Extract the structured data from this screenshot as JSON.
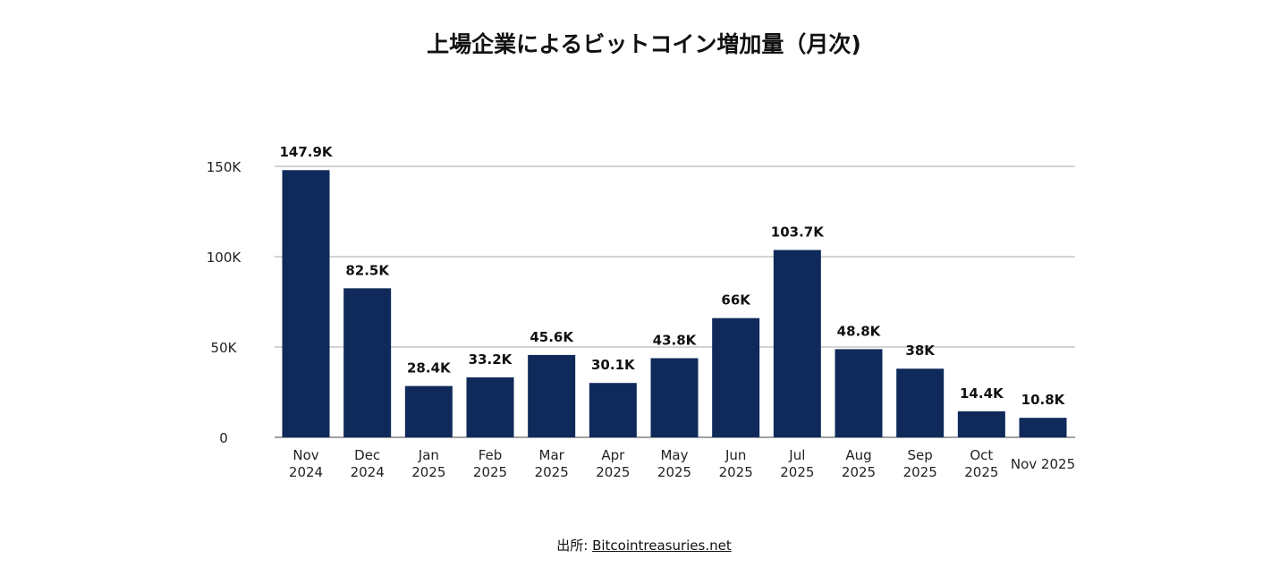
{
  "chart_data": {
    "type": "bar",
    "title": "上場企業によるビットコイン増加量（月次)",
    "categories": [
      [
        "Nov",
        "2024"
      ],
      [
        "Dec",
        "2024"
      ],
      [
        "Jan",
        "2025"
      ],
      [
        "Feb",
        "2025"
      ],
      [
        "Mar",
        "2025"
      ],
      [
        "Apr",
        "2025"
      ],
      [
        "May",
        "2025"
      ],
      [
        "Jun",
        "2025"
      ],
      [
        "Jul",
        "2025"
      ],
      [
        "Aug",
        "2025"
      ],
      [
        "Sep",
        "2025"
      ],
      [
        "Oct",
        "2025"
      ],
      [
        "Nov 2025"
      ]
    ],
    "values": [
      147900,
      82500,
      28400,
      33200,
      45600,
      30100,
      43800,
      66000,
      103700,
      48800,
      38000,
      14400,
      10800
    ],
    "data_labels": [
      "147.9K",
      "82.5K",
      "28.4K",
      "33.2K",
      "45.6K",
      "30.1K",
      "43.8K",
      "66K",
      "103.7K",
      "48.8K",
      "38K",
      "14.4K",
      "10.8K"
    ],
    "yticks": [
      0,
      50000,
      100000,
      150000
    ],
    "ytick_labels": [
      "0",
      "50K",
      "100K",
      "150K"
    ],
    "ylim": [
      0,
      150000
    ],
    "xlabel": "",
    "ylabel": "",
    "grid": true,
    "legend": "none",
    "bar_color": "#0f2a5a"
  },
  "source": {
    "prefix": "出所: ",
    "link": "Bitcointreasuries.net"
  }
}
